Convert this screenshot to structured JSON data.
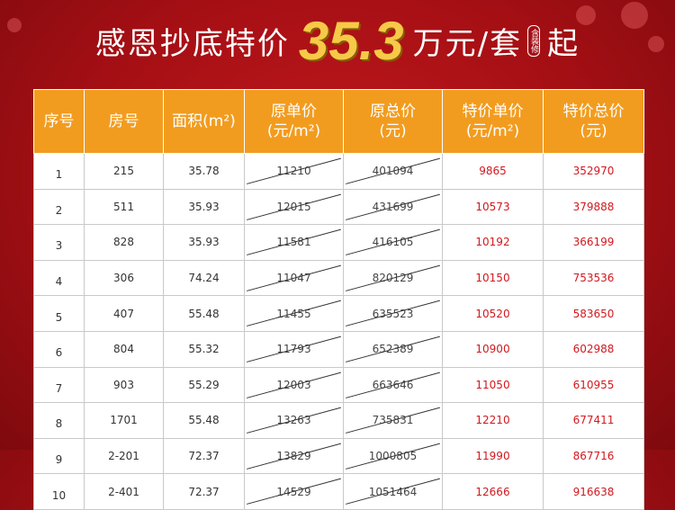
{
  "headline": {
    "prefix": "感恩抄底特价",
    "price": "35.3",
    "unit": "万元/套",
    "note": "含装修",
    "suffix": "起"
  },
  "table": {
    "headers": [
      [
        "序号"
      ],
      [
        "房号"
      ],
      [
        "面积(m²)"
      ],
      [
        "原单价",
        "(元/m²)"
      ],
      [
        "原总价",
        "(元)"
      ],
      [
        "特价单价",
        "(元/m²)"
      ],
      [
        "特价总价",
        "(元)"
      ]
    ],
    "rows": [
      [
        "1",
        "215",
        "35.78",
        "11210",
        "401094",
        "9865",
        "352970"
      ],
      [
        "2",
        "511",
        "35.93",
        "12015",
        "431699",
        "10573",
        "379888"
      ],
      [
        "3",
        "828",
        "35.93",
        "11581",
        "416105",
        "10192",
        "366199"
      ],
      [
        "4",
        "306",
        "74.24",
        "11047",
        "820129",
        "10150",
        "753536"
      ],
      [
        "5",
        "407",
        "55.48",
        "11455",
        "635523",
        "10520",
        "583650"
      ],
      [
        "6",
        "804",
        "55.32",
        "11793",
        "652389",
        "10900",
        "602988"
      ],
      [
        "7",
        "903",
        "55.29",
        "12003",
        "663646",
        "11050",
        "610955"
      ],
      [
        "8",
        "1701",
        "55.48",
        "13263",
        "735831",
        "12210",
        "677411"
      ],
      [
        "9",
        "2-201",
        "72.37",
        "13829",
        "1000805",
        "11990",
        "867716"
      ],
      [
        "10",
        "2-401",
        "72.37",
        "14529",
        "1051464",
        "12666",
        "916638"
      ]
    ]
  },
  "colors": {
    "background": "#a40f14",
    "header_fill": "#f29c1f",
    "price_highlight": "#f7c948",
    "special_price_text": "#d1191f"
  }
}
